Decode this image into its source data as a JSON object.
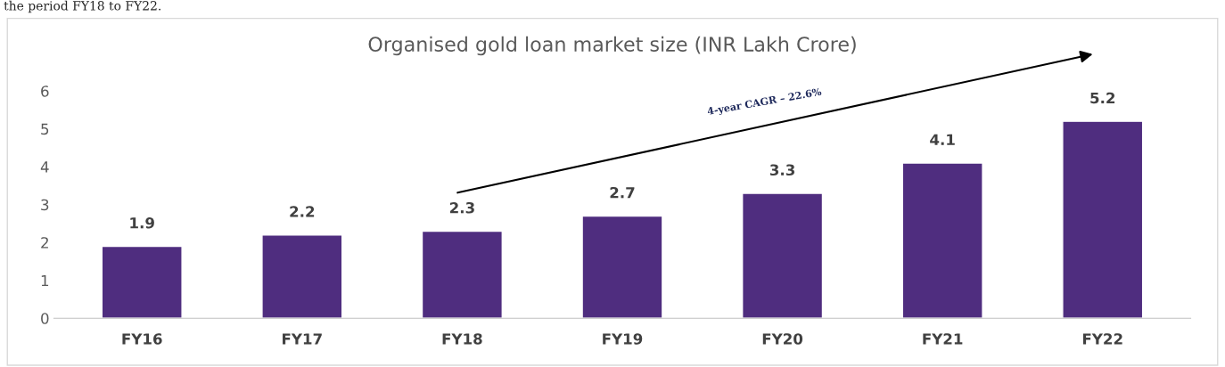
{
  "chart_data": {
    "type": "bar",
    "title": "Organised gold loan market size (INR Lakh Crore)",
    "categories": [
      "FY16",
      "FY17",
      "FY18",
      "FY19",
      "FY20",
      "FY21",
      "FY22"
    ],
    "values": [
      1.9,
      2.2,
      2.3,
      2.7,
      3.3,
      4.1,
      5.2
    ],
    "color": "#4f2d7f",
    "ylim": [
      0,
      6
    ],
    "yticks": [
      0,
      1,
      2,
      3,
      4,
      5,
      6
    ],
    "grid": false,
    "data_labels": true,
    "annotations": [
      "4-year CAGR – 22.6%",
      "the period FY18 to FY22."
    ]
  }
}
